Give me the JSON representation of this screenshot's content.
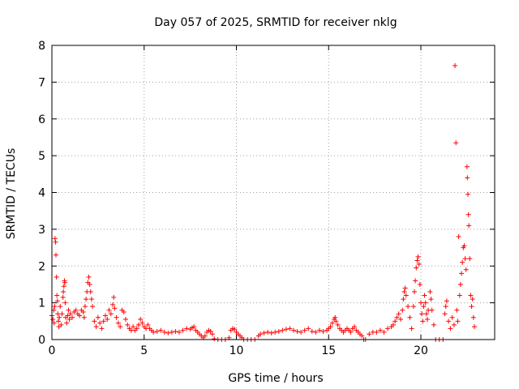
{
  "chart_data": {
    "type": "scatter",
    "title": "Day 057 of 2025, SRMTID for receiver nklg",
    "xlabel": "GPS time / hours",
    "ylabel": "SRMTID / TECUs",
    "xlim": [
      0,
      24
    ],
    "ylim": [
      0,
      8
    ],
    "xticks": [
      0,
      5,
      10,
      15,
      20
    ],
    "yticks": [
      0,
      1,
      2,
      3,
      4,
      5,
      6,
      7,
      8
    ],
    "grid": true,
    "marker": "+",
    "color": "#ff0000",
    "series": [
      {
        "name": "SRMTID",
        "points": [
          [
            0.0,
            0.65
          ],
          [
            0.05,
            0.55
          ],
          [
            0.1,
            0.8
          ],
          [
            0.12,
            0.45
          ],
          [
            0.15,
            0.9
          ],
          [
            0.17,
            2.75
          ],
          [
            0.2,
            2.65
          ],
          [
            0.22,
            2.3
          ],
          [
            0.25,
            1.7
          ],
          [
            0.27,
            1.2
          ],
          [
            0.3,
            1.05
          ],
          [
            0.32,
            0.7
          ],
          [
            0.35,
            0.5
          ],
          [
            0.38,
            0.35
          ],
          [
            0.4,
            0.6
          ],
          [
            0.45,
            0.9
          ],
          [
            0.5,
            0.4
          ],
          [
            0.55,
            0.7
          ],
          [
            0.6,
            1.15
          ],
          [
            0.62,
            1.3
          ],
          [
            0.65,
            1.45
          ],
          [
            0.68,
            1.6
          ],
          [
            0.7,
            1.55
          ],
          [
            0.72,
            1.0
          ],
          [
            0.75,
            0.6
          ],
          [
            0.8,
            0.45
          ],
          [
            0.85,
            0.65
          ],
          [
            0.9,
            0.8
          ],
          [
            0.95,
            0.55
          ],
          [
            1.0,
            0.7
          ],
          [
            1.1,
            0.6
          ],
          [
            1.2,
            0.75
          ],
          [
            1.3,
            0.8
          ],
          [
            1.4,
            0.7
          ],
          [
            1.5,
            0.65
          ],
          [
            1.6,
            0.8
          ],
          [
            1.7,
            0.75
          ],
          [
            1.75,
            0.6
          ],
          [
            1.8,
            0.9
          ],
          [
            1.85,
            1.1
          ],
          [
            1.9,
            1.3
          ],
          [
            1.95,
            1.55
          ],
          [
            2.0,
            1.7
          ],
          [
            2.05,
            1.5
          ],
          [
            2.1,
            1.3
          ],
          [
            2.15,
            1.1
          ],
          [
            2.2,
            0.9
          ],
          [
            2.3,
            0.5
          ],
          [
            2.4,
            0.35
          ],
          [
            2.5,
            0.6
          ],
          [
            2.6,
            0.45
          ],
          [
            2.7,
            0.3
          ],
          [
            2.8,
            0.5
          ],
          [
            2.9,
            0.65
          ],
          [
            3.0,
            0.55
          ],
          [
            3.1,
            0.8
          ],
          [
            3.2,
            0.7
          ],
          [
            3.3,
            0.95
          ],
          [
            3.35,
            1.15
          ],
          [
            3.4,
            0.85
          ],
          [
            3.5,
            0.6
          ],
          [
            3.6,
            0.45
          ],
          [
            3.7,
            0.35
          ],
          [
            3.8,
            0.8
          ],
          [
            3.9,
            0.75
          ],
          [
            4.0,
            0.55
          ],
          [
            4.1,
            0.4
          ],
          [
            4.2,
            0.3
          ],
          [
            4.3,
            0.25
          ],
          [
            4.4,
            0.35
          ],
          [
            4.5,
            0.25
          ],
          [
            4.6,
            0.3
          ],
          [
            4.7,
            0.4
          ],
          [
            4.8,
            0.55
          ],
          [
            4.9,
            0.45
          ],
          [
            5.0,
            0.35
          ],
          [
            5.1,
            0.3
          ],
          [
            5.2,
            0.4
          ],
          [
            5.3,
            0.3
          ],
          [
            5.4,
            0.25
          ],
          [
            5.5,
            0.2
          ],
          [
            5.7,
            0.22
          ],
          [
            5.9,
            0.25
          ],
          [
            6.1,
            0.2
          ],
          [
            6.3,
            0.18
          ],
          [
            6.5,
            0.2
          ],
          [
            6.7,
            0.22
          ],
          [
            6.9,
            0.2
          ],
          [
            7.1,
            0.25
          ],
          [
            7.3,
            0.3
          ],
          [
            7.5,
            0.28
          ],
          [
            7.6,
            0.32
          ],
          [
            7.7,
            0.35
          ],
          [
            7.8,
            0.25
          ],
          [
            7.9,
            0.2
          ],
          [
            8.0,
            0.15
          ],
          [
            8.1,
            0.1
          ],
          [
            8.2,
            0.05
          ],
          [
            8.3,
            0.1
          ],
          [
            8.4,
            0.2
          ],
          [
            8.5,
            0.25
          ],
          [
            8.6,
            0.22
          ],
          [
            8.7,
            0.15
          ],
          [
            8.8,
            0.02
          ],
          [
            9.0,
            0.0
          ],
          [
            9.2,
            0.0
          ],
          [
            9.4,
            0.0
          ],
          [
            9.6,
            0.05
          ],
          [
            9.7,
            0.25
          ],
          [
            9.8,
            0.3
          ],
          [
            9.9,
            0.28
          ],
          [
            10.0,
            0.2
          ],
          [
            10.1,
            0.15
          ],
          [
            10.2,
            0.1
          ],
          [
            10.3,
            0.05
          ],
          [
            10.4,
            0.0
          ],
          [
            10.6,
            0.0
          ],
          [
            10.8,
            0.0
          ],
          [
            11.0,
            0.0
          ],
          [
            11.2,
            0.1
          ],
          [
            11.3,
            0.15
          ],
          [
            11.5,
            0.18
          ],
          [
            11.7,
            0.2
          ],
          [
            11.9,
            0.18
          ],
          [
            12.1,
            0.2
          ],
          [
            12.3,
            0.22
          ],
          [
            12.5,
            0.25
          ],
          [
            12.7,
            0.28
          ],
          [
            12.9,
            0.3
          ],
          [
            13.1,
            0.25
          ],
          [
            13.3,
            0.22
          ],
          [
            13.5,
            0.2
          ],
          [
            13.7,
            0.25
          ],
          [
            13.9,
            0.3
          ],
          [
            14.1,
            0.22
          ],
          [
            14.3,
            0.2
          ],
          [
            14.5,
            0.25
          ],
          [
            14.7,
            0.22
          ],
          [
            14.9,
            0.25
          ],
          [
            15.0,
            0.3
          ],
          [
            15.1,
            0.35
          ],
          [
            15.2,
            0.45
          ],
          [
            15.3,
            0.55
          ],
          [
            15.35,
            0.6
          ],
          [
            15.4,
            0.5
          ],
          [
            15.5,
            0.4
          ],
          [
            15.6,
            0.3
          ],
          [
            15.7,
            0.25
          ],
          [
            15.8,
            0.2
          ],
          [
            15.9,
            0.25
          ],
          [
            16.0,
            0.3
          ],
          [
            16.1,
            0.25
          ],
          [
            16.2,
            0.2
          ],
          [
            16.3,
            0.3
          ],
          [
            16.4,
            0.35
          ],
          [
            16.5,
            0.25
          ],
          [
            16.6,
            0.2
          ],
          [
            16.7,
            0.15
          ],
          [
            16.8,
            0.1
          ],
          [
            16.9,
            0.0
          ],
          [
            17.0,
            0.0
          ],
          [
            17.2,
            0.15
          ],
          [
            17.4,
            0.2
          ],
          [
            17.6,
            0.2
          ],
          [
            17.8,
            0.25
          ],
          [
            18.0,
            0.2
          ],
          [
            18.2,
            0.3
          ],
          [
            18.4,
            0.35
          ],
          [
            18.5,
            0.4
          ],
          [
            18.6,
            0.5
          ],
          [
            18.7,
            0.6
          ],
          [
            18.8,
            0.7
          ],
          [
            18.9,
            0.55
          ],
          [
            19.0,
            0.8
          ],
          [
            19.05,
            1.1
          ],
          [
            19.1,
            1.3
          ],
          [
            19.15,
            1.4
          ],
          [
            19.2,
            1.2
          ],
          [
            19.3,
            0.9
          ],
          [
            19.4,
            0.6
          ],
          [
            19.5,
            0.3
          ],
          [
            19.6,
            0.9
          ],
          [
            19.65,
            1.3
          ],
          [
            19.7,
            1.6
          ],
          [
            19.75,
            1.95
          ],
          [
            19.8,
            2.15
          ],
          [
            19.85,
            2.25
          ],
          [
            19.9,
            2.05
          ],
          [
            19.95,
            1.5
          ],
          [
            20.0,
            1.0
          ],
          [
            20.05,
            0.7
          ],
          [
            20.1,
            0.5
          ],
          [
            20.15,
            0.9
          ],
          [
            20.2,
            1.2
          ],
          [
            20.25,
            1.0
          ],
          [
            20.3,
            0.7
          ],
          [
            20.35,
            0.55
          ],
          [
            20.4,
            0.8
          ],
          [
            20.5,
            1.3
          ],
          [
            20.55,
            1.1
          ],
          [
            20.6,
            0.8
          ],
          [
            20.7,
            0.4
          ],
          [
            20.8,
            0.0
          ],
          [
            21.0,
            0.0
          ],
          [
            21.2,
            0.0
          ],
          [
            21.3,
            0.7
          ],
          [
            21.35,
            0.9
          ],
          [
            21.4,
            1.05
          ],
          [
            21.5,
            0.5
          ],
          [
            21.6,
            0.3
          ],
          [
            21.7,
            0.6
          ],
          [
            21.8,
            0.4
          ],
          [
            21.85,
            7.45
          ],
          [
            21.9,
            5.35
          ],
          [
            21.95,
            0.8
          ],
          [
            22.0,
            0.5
          ],
          [
            22.05,
            2.8
          ],
          [
            22.1,
            1.2
          ],
          [
            22.15,
            1.5
          ],
          [
            22.2,
            1.8
          ],
          [
            22.25,
            2.1
          ],
          [
            22.3,
            2.5
          ],
          [
            22.35,
            2.55
          ],
          [
            22.4,
            2.2
          ],
          [
            22.45,
            1.9
          ],
          [
            22.5,
            4.7
          ],
          [
            22.52,
            4.4
          ],
          [
            22.55,
            3.95
          ],
          [
            22.58,
            3.4
          ],
          [
            22.6,
            3.1
          ],
          [
            22.65,
            2.2
          ],
          [
            22.7,
            1.2
          ],
          [
            22.75,
            0.9
          ],
          [
            22.8,
            1.1
          ],
          [
            22.85,
            0.6
          ],
          [
            22.9,
            0.35
          ]
        ]
      }
    ]
  }
}
